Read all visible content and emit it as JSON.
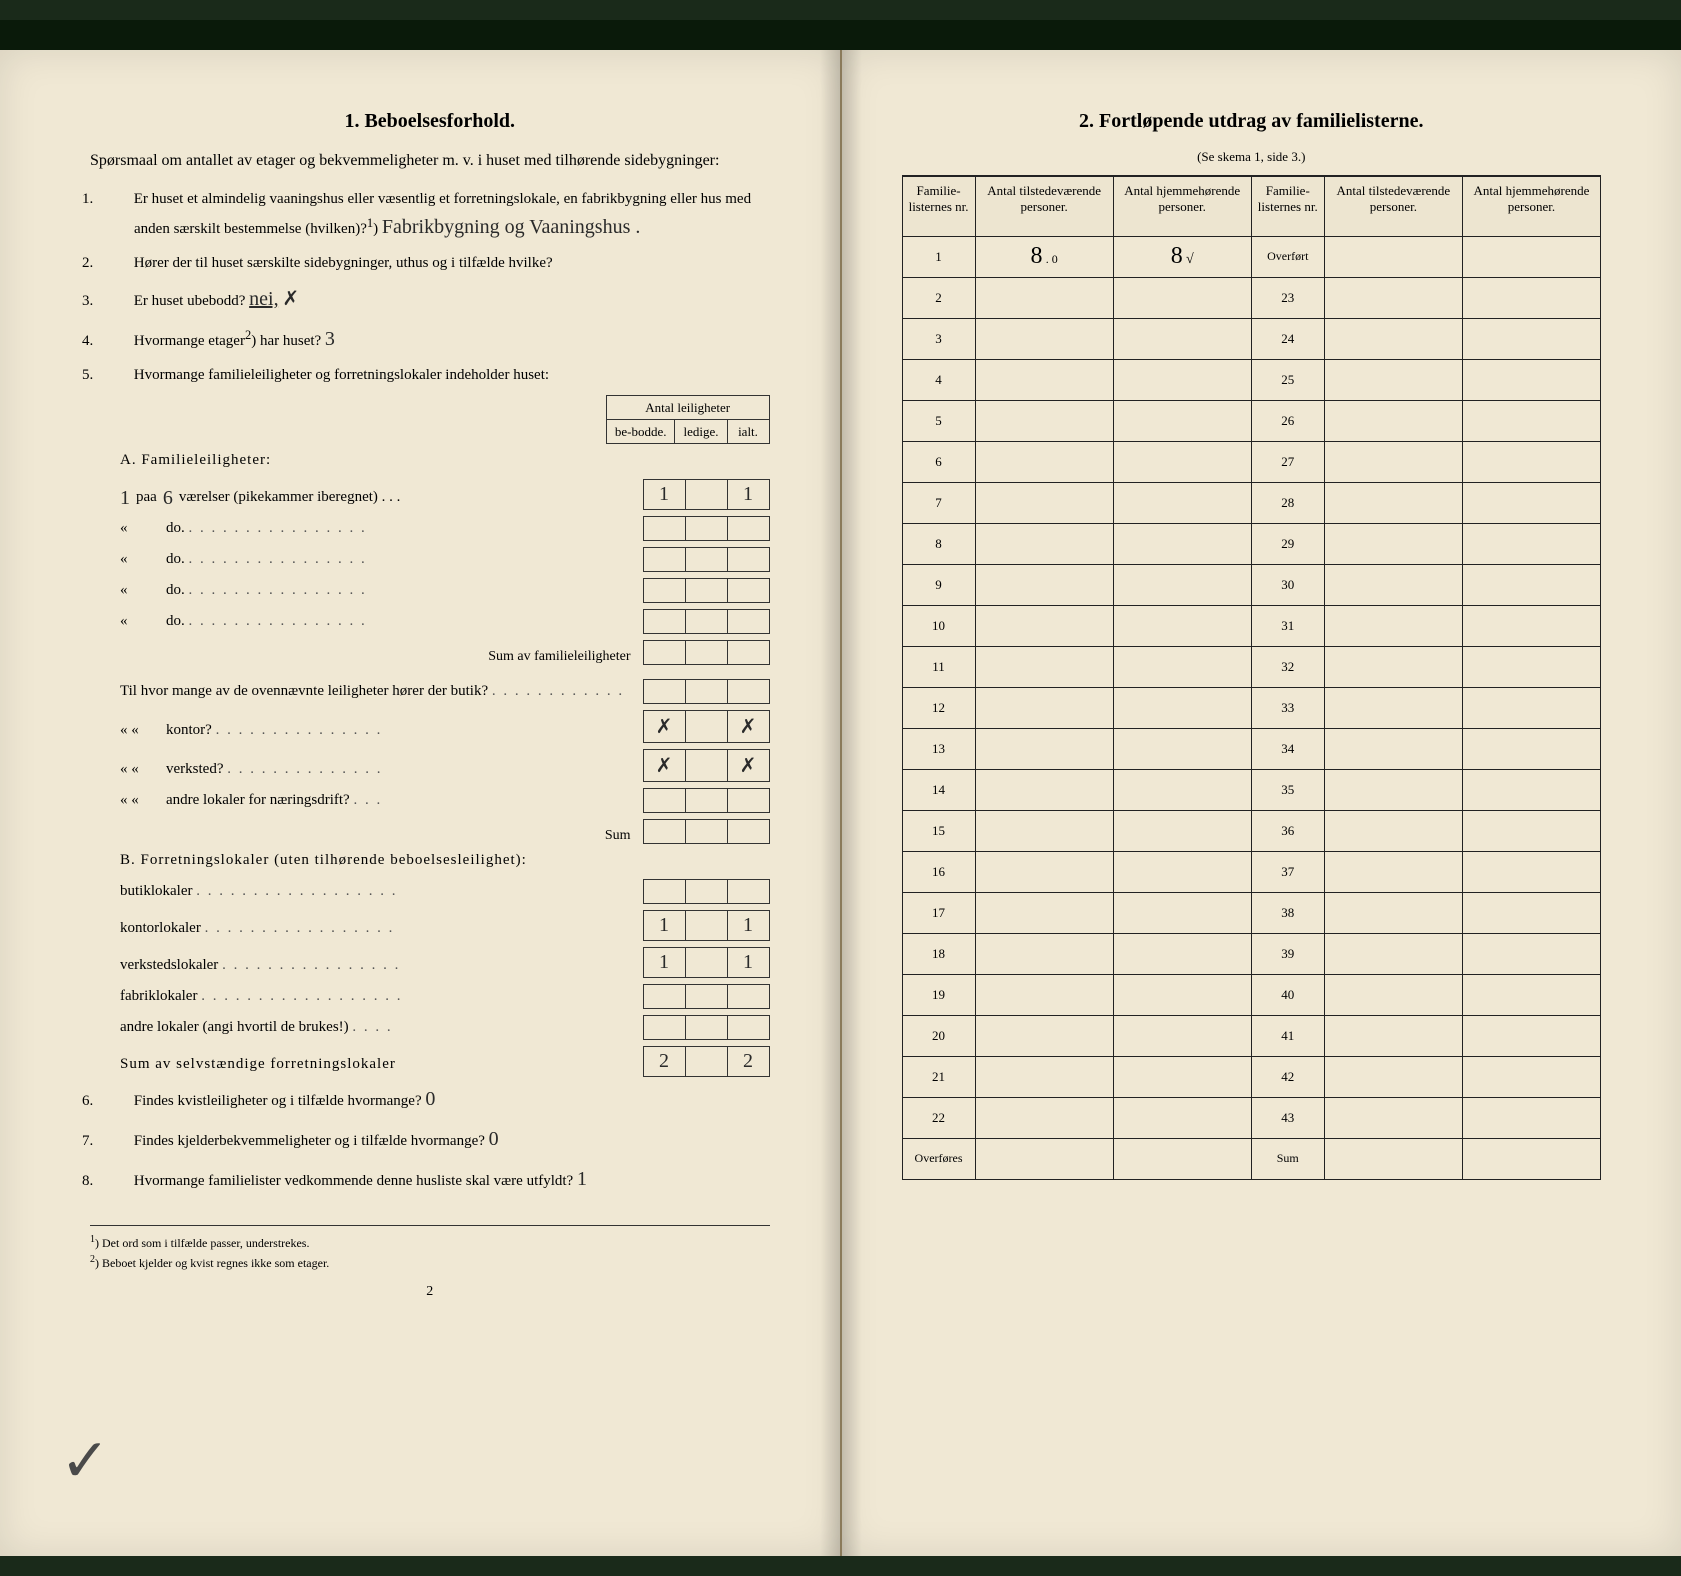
{
  "left": {
    "title": "1.   Beboelsesforhold.",
    "intro": "Spørsmaal om antallet av etager og bekvemmeligheter m. v. i huset med tilhørende sidebygninger:",
    "q1_a": "Er huset et almindelig vaaningshus eller væsentlig et forretningslokale, en fabrikbygning eller hus med anden særskilt bestemmelse (hvilken)?",
    "q1_foot": "1",
    "q1_hand": "Fabrikbygning og Vaaningshus .",
    "q2": "Hører der til huset særskilte sidebygninger, uthus og i tilfælde hvilke?",
    "q3_a": "Er huset ubebodd?",
    "q3_hand": "nei,",
    "q4_a": "Hvormange etager",
    "q4_foot": "2",
    "q4_b": ") har huset?",
    "q4_hand": "3",
    "q5": "Hvormange familieleiligheter og forretningslokaler indeholder huset:",
    "tbl_hdr": "Antal leiligheter",
    "tbl_c1": "be-bodde.",
    "tbl_c2": "ledige.",
    "tbl_c3": "ialt.",
    "secA": "A. Familieleiligheter:",
    "A_row1_hand1": "1",
    "A_row1_a": "paa",
    "A_row1_hand2": "6",
    "A_row1_b": "værelser (pikekammer iberegnet) . . .",
    "A_v1": "1",
    "A_v3": "1",
    "A_do": "do.",
    "A_sum": "Sum av familieleiligheter",
    "mid_q": "Til hvor mange av de ovennævnte leiligheter hører der butik?",
    "mid_r2": "kontor?",
    "mid_r3": "verksted?",
    "mid_r4": "andre lokaler for næringsdrift?",
    "mid_x": "✗",
    "mid_sum": "Sum",
    "secB": "B. Forretningslokaler (uten tilhørende beboelsesleilighet):",
    "B_r1": "butiklokaler",
    "B_r2": "kontorlokaler",
    "B_r3": "verkstedslokaler",
    "B_r4": "fabriklokaler",
    "B_r5": "andre lokaler (angi hvortil de brukes!)",
    "B_v2a": "1",
    "B_v2c": "1",
    "B_v3a": "1",
    "B_v3c": "1",
    "B_sum": "Sum av selvstændige forretningslokaler",
    "B_sum_a": "2",
    "B_sum_c": "2",
    "q6": "Findes kvistleiligheter og i tilfælde hvormange?",
    "q6_hand": "0",
    "q7": "Findes kjelderbekvemmeligheter og i tilfælde hvormange?",
    "q7_hand": "0",
    "q8": "Hvormange familielister vedkommende denne husliste skal være utfyldt?",
    "q8_hand": "1",
    "fn1": "Det ord som i tilfælde passer, understrekes.",
    "fn2": "Beboet kjelder og kvist regnes ikke som etager.",
    "pagenum": "2"
  },
  "right": {
    "title": "2.   Fortløpende utdrag av familielisterne.",
    "subtitle": "(Se skema 1, side 3.)",
    "h1": "Familie-listernes nr.",
    "h2": "Antal tilstedeværende personer.",
    "h3": "Antal hjemmehørende personer.",
    "rows_left": [
      "1",
      "2",
      "3",
      "4",
      "5",
      "6",
      "7",
      "8",
      "9",
      "10",
      "11",
      "12",
      "13",
      "14",
      "15",
      "16",
      "17",
      "18",
      "19",
      "20",
      "21",
      "22"
    ],
    "rows_right": [
      "23",
      "24",
      "25",
      "26",
      "27",
      "28",
      "29",
      "30",
      "31",
      "32",
      "33",
      "34",
      "35",
      "36",
      "37",
      "38",
      "39",
      "40",
      "41",
      "42",
      "43"
    ],
    "overfort": "Overført",
    "overfores": "Overføres",
    "sum": "Sum",
    "r1_v1_a": "8",
    "r1_v1_b": ". 0",
    "r1_v2_a": "8",
    "r1_v2_b": "√"
  }
}
